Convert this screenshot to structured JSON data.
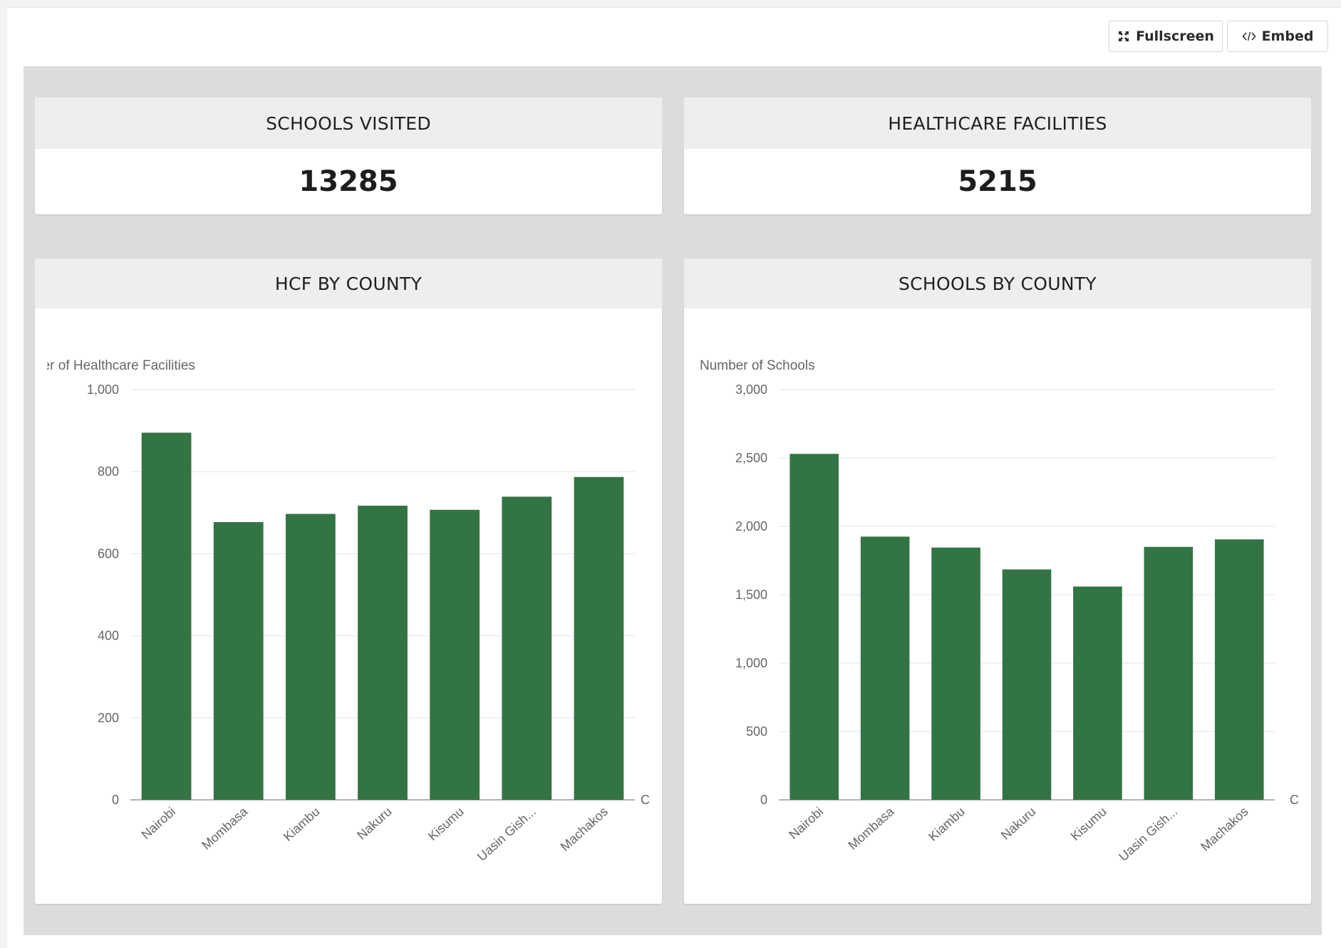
{
  "toolbar": {
    "fullscreen_label": "Fullscreen",
    "embed_label": "Embed",
    "fullscreen_icon": "expand-icon",
    "embed_icon": "code-icon"
  },
  "kpis": [
    {
      "title": "SCHOOLS VISITED",
      "value": "13285"
    },
    {
      "title": "HEALTHCARE FACILITIES",
      "value": "5215"
    }
  ],
  "chart_data": [
    {
      "type": "bar",
      "title": "HCF BY COUNTY",
      "ylabel": "Number of Healthcare Facilities",
      "ylabel_visible": "ber of Healthcare Facilities",
      "xlabel": "C",
      "categories": [
        "Nairobi",
        "Mombasa",
        "Kiambu",
        "Nakuru",
        "Kisumu",
        "Uasin Gish...",
        "Machakos"
      ],
      "values": [
        895,
        677,
        697,
        717,
        707,
        739,
        787
      ],
      "ylim": [
        0,
        1000
      ],
      "yticks": [
        0,
        200,
        400,
        600,
        800,
        1000
      ],
      "ytick_labels": [
        "0",
        "200",
        "400",
        "600",
        "800",
        "1,000"
      ],
      "grid": true,
      "bar_color": "#337445"
    },
    {
      "type": "bar",
      "title": "SCHOOLS BY COUNTY",
      "ylabel": "Number of Schools",
      "xlabel": "C",
      "categories": [
        "Nairobi",
        "Mombasa",
        "Kiambu",
        "Nakuru",
        "Kisumu",
        "Uasin Gish...",
        "Machakos"
      ],
      "values": [
        2530,
        1925,
        1845,
        1685,
        1560,
        1850,
        1905
      ],
      "ylim": [
        0,
        3000
      ],
      "yticks": [
        0,
        500,
        1000,
        1500,
        2000,
        2500,
        3000
      ],
      "ytick_labels": [
        "0",
        "500",
        "1,000",
        "1,500",
        "2,000",
        "2,500",
        "3,000"
      ],
      "grid": true,
      "bar_color": "#337445"
    }
  ]
}
